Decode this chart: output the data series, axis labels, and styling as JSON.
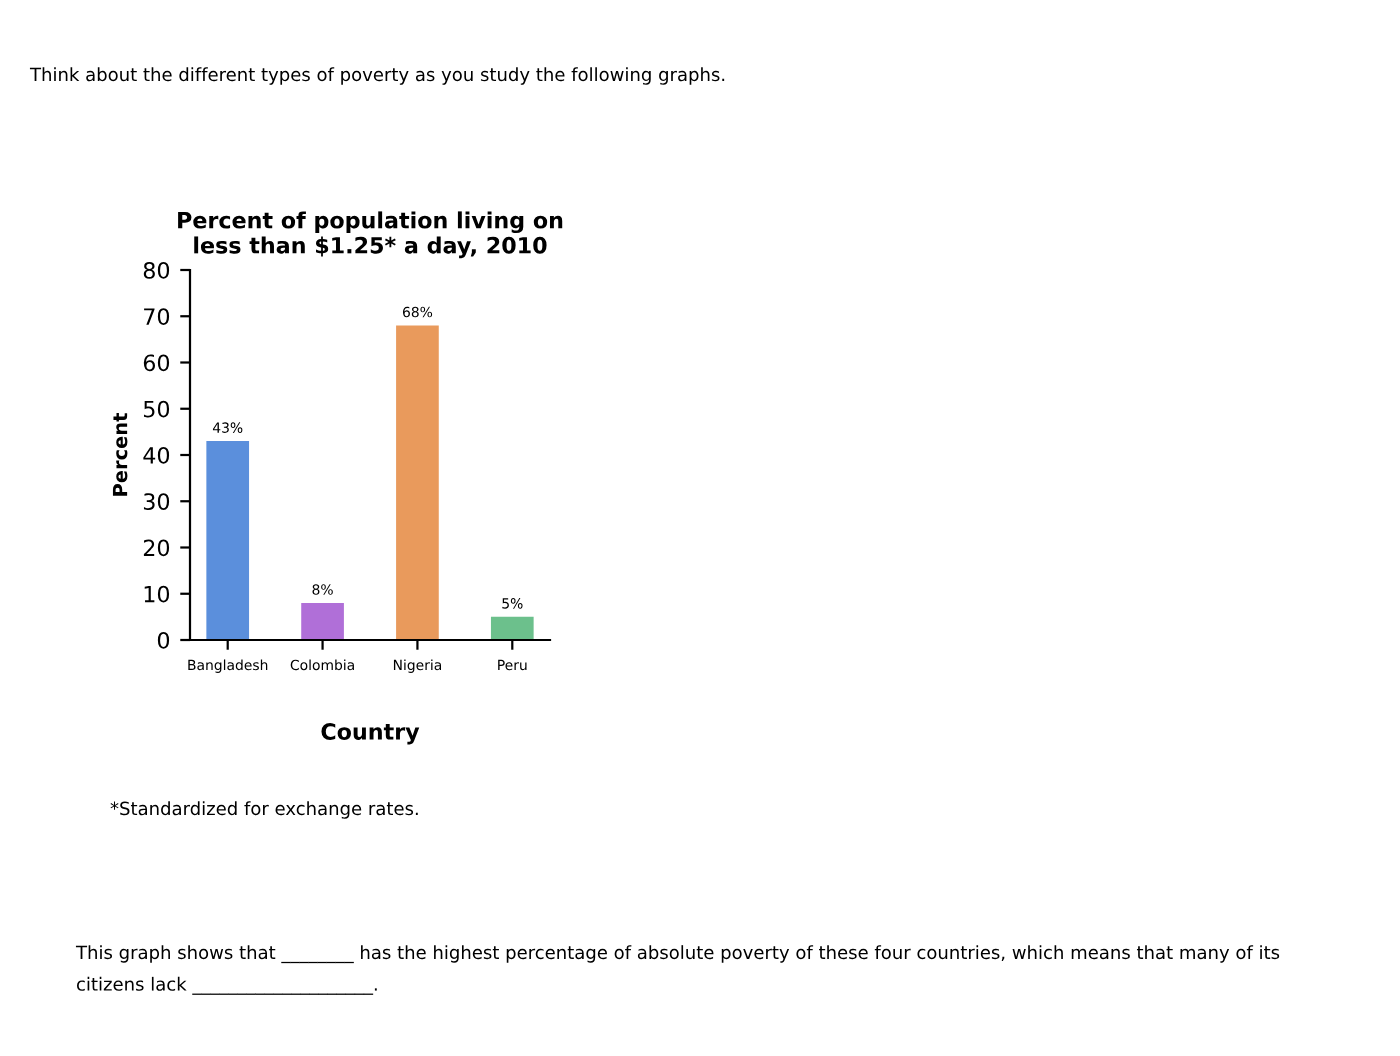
{
  "chart_data": {
    "type": "bar",
    "title": "Percent of population living on\nless than $1.25* a day, 2010",
    "xlabel": "Country",
    "ylabel": "Percent",
    "categories": [
      "Bangladesh",
      "Colombia",
      "Nigeria",
      "Peru"
    ],
    "values": [
      43,
      8,
      68,
      5
    ],
    "colors": [
      "#5b8fdc",
      "#b06fd8",
      "#e99a5c",
      "#6cc08c"
    ],
    "value_labels": [
      "43%",
      "8%",
      "68%",
      "5%"
    ],
    "ylim": [
      0,
      80
    ],
    "yticks": [
      0,
      10,
      20,
      30,
      40,
      50,
      60,
      70,
      80
    ],
    "grid": false,
    "legend": false,
    "annotations": [
      "Think about the different types of poverty as you study the following graphs.",
      "*Standardized for exchange rates.",
      "This graph shows that ________ has the highest percentage of absolute poverty of these four countries, which means that many of its\ncitizens lack ____________________."
    ]
  }
}
